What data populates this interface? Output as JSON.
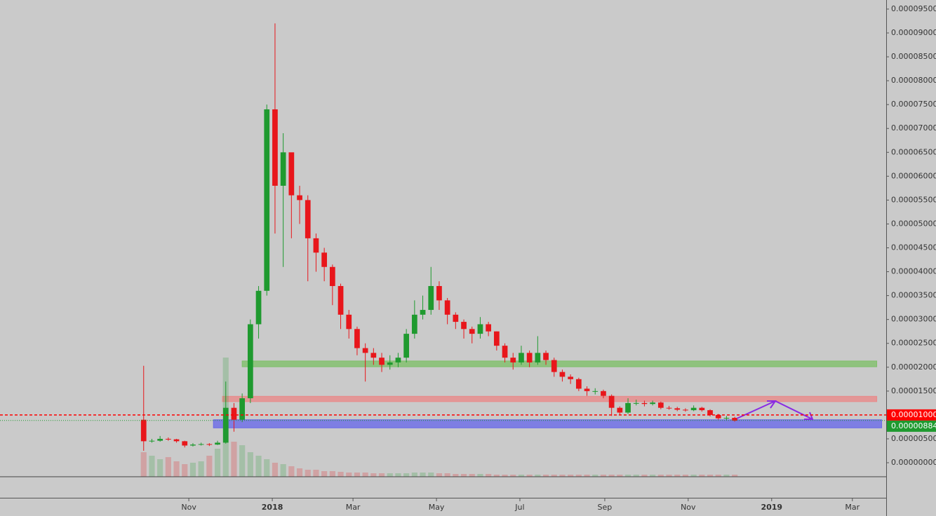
{
  "chart_data": {
    "type": "candlestick",
    "ylim": [
      -7.34e-06,
      9.69e-05
    ],
    "yticks": [
      {
        "value": 0,
        "label": "0.00000000"
      },
      {
        "value": 5e-06,
        "label": "0.00000500"
      },
      {
        "value": 1e-05,
        "label": "0.00001000"
      },
      {
        "value": 1.5e-05,
        "label": "0.00001500"
      },
      {
        "value": 2e-05,
        "label": "0.00002000"
      },
      {
        "value": 2.5e-05,
        "label": "0.00002500"
      },
      {
        "value": 3e-05,
        "label": "0.00003000"
      },
      {
        "value": 3.5e-05,
        "label": "0.00003500"
      },
      {
        "value": 4e-05,
        "label": "0.00004000"
      },
      {
        "value": 4.5e-05,
        "label": "0.00004500"
      },
      {
        "value": 5e-05,
        "label": "0.00005000"
      },
      {
        "value": 5.5e-05,
        "label": "0.00005500"
      },
      {
        "value": 6e-05,
        "label": "0.00006000"
      },
      {
        "value": 6.5e-05,
        "label": "0.00006500"
      },
      {
        "value": 7e-05,
        "label": "0.00007000"
      },
      {
        "value": 7.5e-05,
        "label": "0.00007500"
      },
      {
        "value": 8e-05,
        "label": "0.00008000"
      },
      {
        "value": 8.5e-05,
        "label": "0.00008500"
      },
      {
        "value": 9e-05,
        "label": "0.00009000"
      },
      {
        "value": 9.5e-05,
        "label": "0.00009500"
      }
    ],
    "xlim": [
      -17.5,
      90.45
    ],
    "xticks": [
      {
        "value": 5.5,
        "label": "Nov"
      },
      {
        "value": 15.67,
        "label": "2018"
      },
      {
        "value": 25.5,
        "label": "Mar"
      },
      {
        "value": 35.67,
        "label": "May"
      },
      {
        "value": 45.83,
        "label": "Jul"
      },
      {
        "value": 56.17,
        "label": "Sep"
      },
      {
        "value": 66.33,
        "label": "Nov"
      },
      {
        "value": 76.5,
        "label": "2019"
      },
      {
        "value": 86.33,
        "label": "Mar"
      }
    ],
    "up_color": "#1f9a2f",
    "down_color": "#e8161b",
    "candles": {
      "open": [
        9e-06,
        4.5e-06,
        4.6e-06,
        5e-06,
        4.9e-06,
        4.5e-06,
        3.6e-06,
        3.8e-06,
        3.9e-06,
        3.8e-06,
        4.2e-06,
        1.15e-05,
        9e-06,
        1.35e-05,
        2.9e-05,
        3.6e-05,
        7.4e-05,
        5.8e-05,
        6.5e-05,
        5.6e-05,
        5.5e-05,
        4.7e-05,
        4.4e-05,
        4.1e-05,
        3.7e-05,
        3.1e-05,
        2.8e-05,
        2.4e-05,
        2.3e-05,
        2.2e-05,
        2.05e-05,
        2.1e-05,
        2.2e-05,
        2.7e-05,
        3.1e-05,
        3.2e-05,
        3.7e-05,
        3.4e-05,
        3.1e-05,
        2.95e-05,
        2.8e-05,
        2.7e-05,
        2.9e-05,
        2.75e-05,
        2.45e-05,
        2.2e-05,
        2.1e-05,
        2.3e-05,
        2.1e-05,
        2.3e-05,
        2.15e-05,
        1.9e-05,
        1.8e-05,
        1.75e-05,
        1.55e-05,
        1.5e-05,
        1.5e-05,
        1.4e-05,
        1.15e-05,
        1.05e-05,
        1.25e-05,
        1.25e-05,
        1.23e-05,
        1.26e-05,
        1.15e-05,
        1.14e-05,
        1.11e-05,
        1.1e-05,
        1.15e-05,
        1.1e-05,
        1e-05,
        9.3e-06,
        9.4e-06
      ],
      "high": [
        2.03e-05,
        5e-06,
        5.6e-06,
        5.3e-06,
        5e-06,
        4.6e-06,
        4.1e-06,
        4.2e-06,
        4.1e-06,
        4.6e-06,
        1.7e-05,
        1.25e-05,
        1.45e-05,
        3e-05,
        3.7e-05,
        7.5e-05,
        9.2e-05,
        6.9e-05,
        6.3e-05,
        5.8e-05,
        5.6e-05,
        4.8e-05,
        4.5e-05,
        4.15e-05,
        3.75e-05,
        3.2e-05,
        2.85e-05,
        2.5e-05,
        2.4e-05,
        2.3e-05,
        2.25e-05,
        2.3e-05,
        2.8e-05,
        3.4e-05,
        3.5e-05,
        4.1e-05,
        3.8e-05,
        3.45e-05,
        3.15e-05,
        3e-05,
        2.85e-05,
        3.05e-05,
        2.95e-05,
        2.75e-05,
        2.5e-05,
        2.3e-05,
        2.45e-05,
        2.35e-05,
        2.65e-05,
        2.35e-05,
        2.2e-05,
        1.95e-05,
        1.85e-05,
        1.78e-05,
        1.6e-05,
        1.56e-05,
        1.53e-05,
        1.43e-05,
        1.18e-05,
        1.35e-05,
        1.32e-05,
        1.3e-05,
        1.3e-05,
        1.28e-05,
        1.19e-05,
        1.17e-05,
        1.14e-05,
        1.2e-05,
        1.17e-05,
        1.12e-05,
        1.02e-05,
        9.8e-06,
        9.6e-06
      ],
      "low": [
        2.5e-06,
        4.2e-06,
        4.4e-06,
        4.6e-06,
        4.2e-06,
        3.2e-06,
        3.4e-06,
        3.6e-06,
        3.5e-06,
        3.7e-06,
        4e-06,
        6.5e-06,
        8.5e-06,
        1.25e-05,
        2.6e-05,
        3.5e-05,
        4.8e-05,
        4.1e-05,
        4.7e-05,
        5e-05,
        3.8e-05,
        4e-05,
        3.8e-05,
        3.3e-05,
        2.8e-05,
        2.6e-05,
        2.25e-05,
        1.7e-05,
        2.05e-05,
        1.9e-05,
        1.95e-05,
        2e-05,
        2.1e-05,
        2.6e-05,
        3e-05,
        3.1e-05,
        3.2e-05,
        2.9e-05,
        2.8e-05,
        2.6e-05,
        2.5e-05,
        2.6e-05,
        2.65e-05,
        2.35e-05,
        2.1e-05,
        1.95e-05,
        2.05e-05,
        2e-05,
        2.05e-05,
        2.05e-05,
        1.8e-05,
        1.7e-05,
        1.65e-05,
        1.5e-05,
        1.4e-05,
        1.43e-05,
        1.35e-05,
        9.8e-06,
        1e-05,
        1.02e-05,
        1.2e-05,
        1.18e-05,
        1.2e-05,
        1.12e-05,
        1.11e-05,
        1.08e-05,
        1.07e-05,
        1.08e-05,
        1.07e-05,
        9.7e-06,
        9e-06,
        8.9e-06,
        8.6e-06
      ],
      "close": [
        4.5e-06,
        4.6e-06,
        5e-06,
        4.9e-06,
        4.5e-06,
        3.6e-06,
        3.8e-06,
        3.9e-06,
        3.8e-06,
        4.2e-06,
        1.15e-05,
        9e-06,
        1.35e-05,
        2.9e-05,
        3.6e-05,
        7.4e-05,
        5.8e-05,
        6.5e-05,
        5.6e-05,
        5.5e-05,
        4.7e-05,
        4.4e-05,
        4.1e-05,
        3.7e-05,
        3.1e-05,
        2.8e-05,
        2.4e-05,
        2.3e-05,
        2.2e-05,
        2.05e-05,
        2.1e-05,
        2.2e-05,
        2.7e-05,
        3.1e-05,
        3.2e-05,
        3.7e-05,
        3.4e-05,
        3.1e-05,
        2.95e-05,
        2.8e-05,
        2.7e-05,
        2.9e-05,
        2.75e-05,
        2.45e-05,
        2.2e-05,
        2.1e-05,
        2.3e-05,
        2.1e-05,
        2.3e-05,
        2.15e-05,
        1.9e-05,
        1.8e-05,
        1.75e-05,
        1.55e-05,
        1.5e-05,
        1.5e-05,
        1.4e-05,
        1.15e-05,
        1.05e-05,
        1.25e-05,
        1.25e-05,
        1.23e-05,
        1.26e-05,
        1.15e-05,
        1.14e-05,
        1.11e-05,
        1.1e-05,
        1.15e-05,
        1.1e-05,
        1e-05,
        9.3e-06,
        9.4e-06,
        8.8e-06
      ]
    },
    "volume": [
      35,
      30,
      25,
      28,
      22,
      18,
      20,
      22,
      30,
      40,
      170,
      50,
      45,
      35,
      30,
      25,
      20,
      18,
      15,
      12,
      10,
      10,
      8,
      8,
      7,
      6,
      6,
      6,
      5,
      5,
      5,
      5,
      5,
      6,
      6,
      6,
      5,
      5,
      4,
      4,
      4,
      4,
      4,
      3,
      3,
      3,
      3,
      3,
      3,
      3,
      3,
      3,
      3,
      3,
      3,
      3,
      3,
      3,
      3,
      3,
      3,
      3,
      3,
      3,
      3,
      3,
      3,
      3,
      3,
      3,
      3,
      3,
      3
    ],
    "zones": [
      {
        "low": 2.01e-05,
        "high": 2.13e-05,
        "start": 12,
        "end": 89.3,
        "color": "#7fbf6a"
      },
      {
        "low": 1.28e-05,
        "high": 1.39e-05,
        "start": 9.6,
        "end": 89.3,
        "color": "#e98a8a"
      },
      {
        "low": 7.3e-06,
        "high": 9e-06,
        "start": 8.5,
        "end": 89.9,
        "color": "#6a6ae8"
      }
    ],
    "price_lines": [
      {
        "value": 1e-05,
        "label": "0.00001000",
        "color": "#ff0000"
      },
      {
        "value": 8.84e-06,
        "label": "0.00000884",
        "color": "#1f9a2f"
      }
    ]
  }
}
